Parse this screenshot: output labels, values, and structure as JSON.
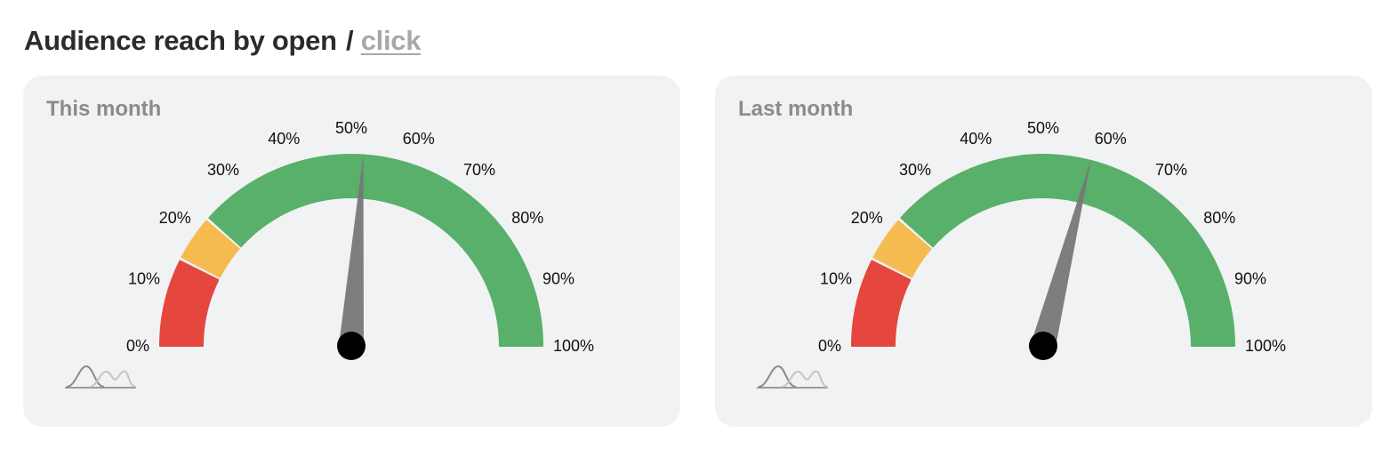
{
  "header": {
    "title_main": "Audience reach by open",
    "title_sep": "/",
    "title_link": "click"
  },
  "colors": {
    "red": "#e5463e",
    "yellow": "#f5bb50",
    "green": "#58b06a",
    "needle": "#777777",
    "needle_hub": "#000000"
  },
  "cards": [
    {
      "title": "This month",
      "icon": "distribution-curve-icon"
    },
    {
      "title": "Last month",
      "icon": "distribution-curve-icon"
    }
  ],
  "chart_data": [
    {
      "type": "gauge",
      "title": "This month",
      "range": [
        0,
        100
      ],
      "ticks": [
        "0%",
        "10%",
        "20%",
        "30%",
        "40%",
        "50%",
        "60%",
        "70%",
        "80%",
        "90%",
        "100%"
      ],
      "bands": [
        {
          "from": 0,
          "to": 15,
          "color": "red"
        },
        {
          "from": 15,
          "to": 23,
          "color": "yellow"
        },
        {
          "from": 23,
          "to": 100,
          "color": "green"
        }
      ],
      "value": 52
    },
    {
      "type": "gauge",
      "title": "Last month",
      "range": [
        0,
        100
      ],
      "ticks": [
        "0%",
        "10%",
        "20%",
        "30%",
        "40%",
        "50%",
        "60%",
        "70%",
        "80%",
        "90%",
        "100%"
      ],
      "bands": [
        {
          "from": 0,
          "to": 15,
          "color": "red"
        },
        {
          "from": 15,
          "to": 23,
          "color": "yellow"
        },
        {
          "from": 23,
          "to": 100,
          "color": "green"
        }
      ],
      "value": 58
    }
  ]
}
